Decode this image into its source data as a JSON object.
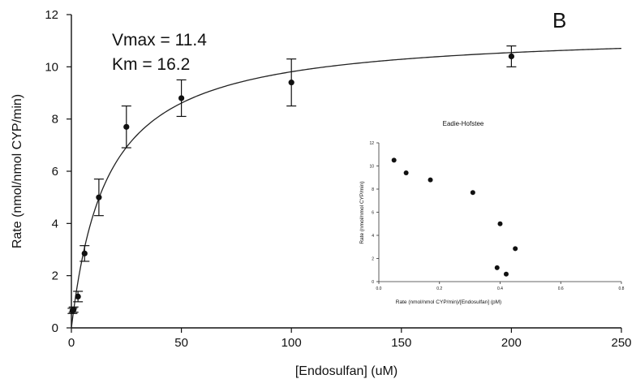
{
  "chart_data": [
    {
      "type": "scatter",
      "panel_label": "B",
      "xlabel": "[Endosulfan] (uM)",
      "ylabel": "Rate (nmol/nmol CYP/min)",
      "xlim": [
        0,
        250
      ],
      "ylim": [
        0,
        12
      ],
      "xticks": [
        0,
        50,
        100,
        150,
        200,
        250
      ],
      "yticks": [
        0,
        2,
        4,
        6,
        8,
        10,
        12
      ],
      "annotations": [
        "Vmax = 11.4",
        "Km = 16.2"
      ],
      "fit": {
        "model": "michaelis-menten",
        "vmax": 11.4,
        "km": 16.2
      },
      "grid": false,
      "points": [
        {
          "x": 0.5,
          "y": 0.65,
          "err": 0.1
        },
        {
          "x": 1,
          "y": 0.7,
          "err": 0.1
        },
        {
          "x": 3,
          "y": 1.2,
          "err": 0.2
        },
        {
          "x": 6,
          "y": 2.85,
          "err": 0.3
        },
        {
          "x": 12.5,
          "y": 5.0,
          "err": 0.7
        },
        {
          "x": 25,
          "y": 7.7,
          "err": 0.8
        },
        {
          "x": 50,
          "y": 8.8,
          "err": 0.7
        },
        {
          "x": 100,
          "y": 9.4,
          "err": 0.9
        },
        {
          "x": 200,
          "y": 10.4,
          "err": 0.4
        }
      ]
    },
    {
      "type": "scatter",
      "title": "Eadie-Hofstee",
      "xlabel": "Rate (nmol/nmol CYP/min)/[Endosulfan] (pM)",
      "ylabel": "Rate (nmol/nmol CYP/min)",
      "xlim": [
        0,
        0.8
      ],
      "ylim": [
        0,
        12
      ],
      "xticks": [
        "0.0",
        "0.2",
        "0.4",
        "0.6",
        "0.8"
      ],
      "yticks": [
        0,
        2,
        4,
        6,
        8,
        10,
        12
      ],
      "points": [
        {
          "x": 0.05,
          "y": 10.5
        },
        {
          "x": 0.09,
          "y": 9.4
        },
        {
          "x": 0.17,
          "y": 8.8
        },
        {
          "x": 0.31,
          "y": 7.7
        },
        {
          "x": 0.4,
          "y": 5.0
        },
        {
          "x": 0.45,
          "y": 2.85
        },
        {
          "x": 0.39,
          "y": 1.2
        },
        {
          "x": 0.42,
          "y": 0.65
        }
      ]
    }
  ]
}
